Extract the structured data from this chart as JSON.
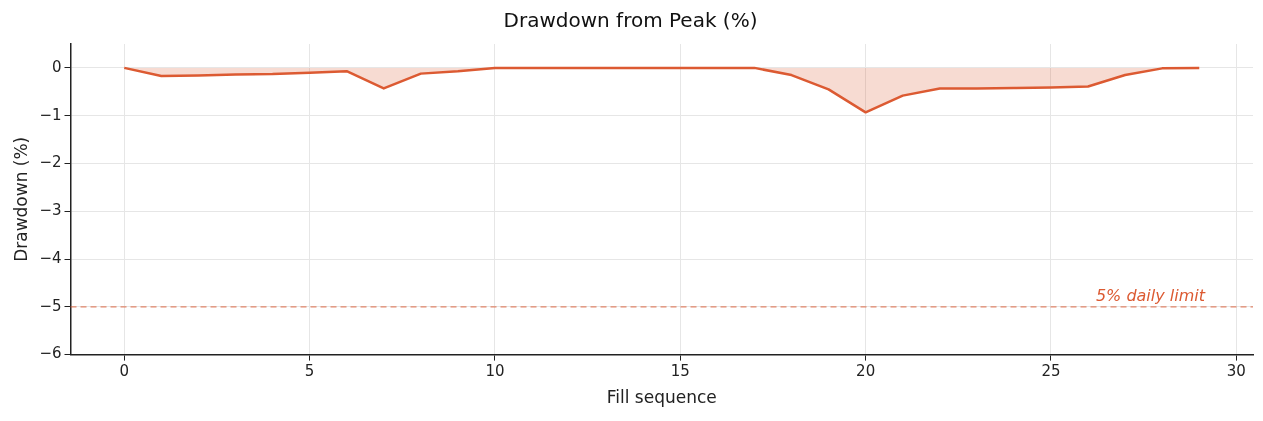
{
  "chart_data": {
    "type": "area",
    "title": "Drawdown from Peak (%)",
    "xlabel": "Fill sequence",
    "ylabel": "Drawdown (%)",
    "x": [
      0,
      1,
      2,
      3,
      4,
      5,
      6,
      7,
      8,
      9,
      10,
      11,
      12,
      13,
      14,
      15,
      16,
      17,
      18,
      19,
      20,
      21,
      22,
      23,
      24,
      25,
      26,
      27,
      28,
      29
    ],
    "series": [
      {
        "color": "#dc5a32",
        "values": [
          0,
          -0.17,
          -0.16,
          -0.14,
          -0.13,
          -0.1,
          -0.07,
          -0.43,
          -0.12,
          -0.07,
          0,
          0,
          0,
          0,
          0,
          0,
          0,
          0,
          -0.15,
          -0.45,
          -0.93,
          -0.58,
          -0.43,
          -0.43,
          -0.42,
          -0.41,
          -0.39,
          -0.15,
          -0.01,
          0
        ]
      }
    ],
    "xlim": [
      -1.45,
      30.45
    ],
    "xticks": [
      0,
      5,
      10,
      15,
      20,
      25,
      30
    ],
    "ylim": [
      -6,
      0.5
    ],
    "yticks": [
      -6,
      -5,
      -4,
      -3,
      -2,
      -1,
      0
    ],
    "grid": true,
    "legend": false,
    "marker": "none",
    "line_style": "solid",
    "ref_lines": [
      {
        "axis": "y",
        "value": -5,
        "label": "5% daily limit",
        "color": "#dc5a32",
        "line_style": "dashed"
      }
    ]
  }
}
